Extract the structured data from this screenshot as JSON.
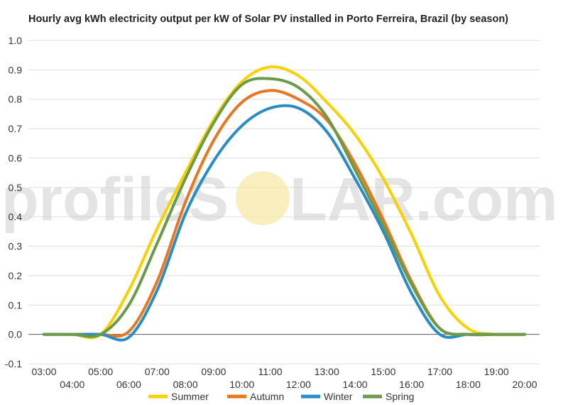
{
  "chart_data": {
    "type": "line",
    "title": "Hourly avg kWh electricity output per kW of Solar PV installed in Porto Ferreira, Brazil (by season)",
    "xlabel": "",
    "ylabel": "",
    "x_ticks": [
      "03:00",
      "04:00",
      "05:00",
      "06:00",
      "07:00",
      "08:00",
      "09:00",
      "10:00",
      "11:00",
      "12:00",
      "13:00",
      "14:00",
      "15:00",
      "16:00",
      "17:00",
      "18:00",
      "19:00",
      "20:00"
    ],
    "y_ticks": [
      "-0.1",
      "0.0",
      "0.1",
      "0.2",
      "0.3",
      "0.4",
      "0.5",
      "0.6",
      "0.7",
      "0.8",
      "0.9",
      "1.0"
    ],
    "ylim": [
      -0.1,
      1.0
    ],
    "grid": true,
    "legend_position": "bottom",
    "series": [
      {
        "name": "Summer",
        "color": "#f7d200",
        "x": [
          "03:00",
          "04:00",
          "05:00",
          "06:00",
          "07:00",
          "08:00",
          "09:00",
          "10:00",
          "11:00",
          "12:00",
          "13:00",
          "14:00",
          "15:00",
          "16:00",
          "17:00",
          "18:00",
          "19:00",
          "20:00"
        ],
        "values": [
          0.0,
          0.0,
          0.0,
          0.15,
          0.36,
          0.55,
          0.73,
          0.86,
          0.91,
          0.88,
          0.79,
          0.68,
          0.53,
          0.34,
          0.13,
          0.02,
          0.0,
          0.0
        ]
      },
      {
        "name": "Autumn",
        "color": "#e87722",
        "x": [
          "03:00",
          "04:00",
          "05:00",
          "06:00",
          "07:00",
          "08:00",
          "09:00",
          "10:00",
          "11:00",
          "12:00",
          "13:00",
          "14:00",
          "15:00",
          "16:00",
          "17:00",
          "18:00",
          "19:00",
          "20:00"
        ],
        "values": [
          0.0,
          0.0,
          0.0,
          0.01,
          0.18,
          0.45,
          0.66,
          0.79,
          0.83,
          0.8,
          0.73,
          0.58,
          0.39,
          0.18,
          0.02,
          0.0,
          0.0,
          0.0
        ]
      },
      {
        "name": "Winter",
        "color": "#2a8cc4",
        "x": [
          "03:00",
          "04:00",
          "05:00",
          "06:00",
          "07:00",
          "08:00",
          "09:00",
          "10:00",
          "11:00",
          "12:00",
          "13:00",
          "14:00",
          "15:00",
          "16:00",
          "17:00",
          "18:00",
          "19:00",
          "20:00"
        ],
        "values": [
          0.0,
          0.0,
          0.0,
          -0.01,
          0.15,
          0.41,
          0.59,
          0.71,
          0.77,
          0.77,
          0.69,
          0.53,
          0.35,
          0.14,
          0.0,
          0.0,
          0.0,
          0.0
        ]
      },
      {
        "name": "Spring",
        "color": "#6a9a4a",
        "x": [
          "03:00",
          "04:00",
          "05:00",
          "06:00",
          "07:00",
          "08:00",
          "09:00",
          "10:00",
          "11:00",
          "12:00",
          "13:00",
          "14:00",
          "15:00",
          "16:00",
          "17:00",
          "18:00",
          "19:00",
          "20:00"
        ],
        "values": [
          0.0,
          0.0,
          0.0,
          0.1,
          0.31,
          0.53,
          0.72,
          0.85,
          0.87,
          0.84,
          0.74,
          0.56,
          0.37,
          0.17,
          0.02,
          0.0,
          0.0,
          0.0
        ]
      }
    ]
  },
  "watermark": {
    "left": "profileS",
    "right": "LAR.com"
  }
}
